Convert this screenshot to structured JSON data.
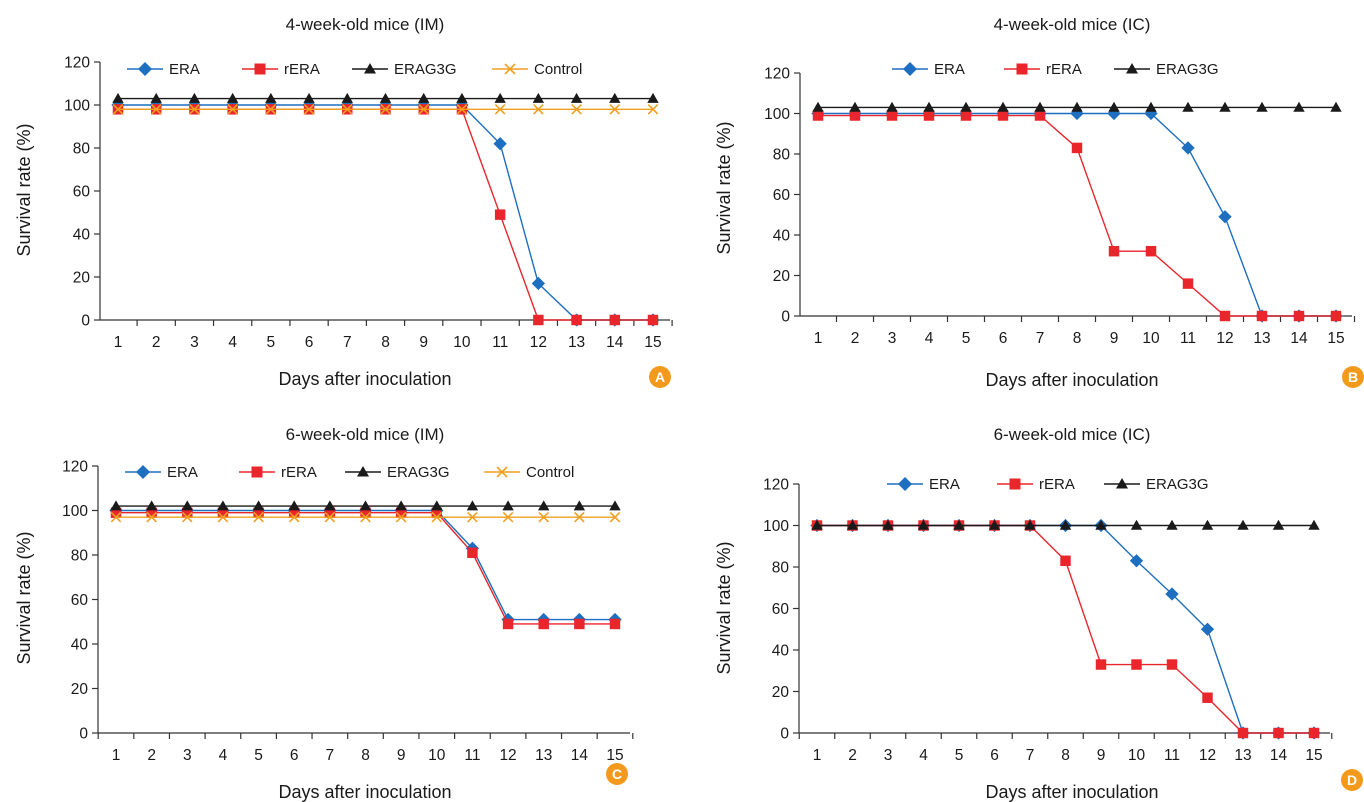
{
  "colors": {
    "ERA": "#1f6fc0",
    "rERA": "#e8262c",
    "ERAG3G": "#1a1a1a",
    "Control": "#f0a020",
    "badge": "#f39a1c",
    "axis": "#333333"
  },
  "chart_data": [
    {
      "panel": "A",
      "type": "line",
      "title": "4-week-old mice (IM)",
      "xlabel": "Days after inoculation",
      "ylabel": "Survival rate (%)",
      "x": [
        1,
        2,
        3,
        4,
        5,
        6,
        7,
        8,
        9,
        10,
        11,
        12,
        13,
        14,
        15
      ],
      "xlim": [
        1,
        15
      ],
      "ylim": [
        0,
        120
      ],
      "yticks": [
        0,
        20,
        40,
        60,
        80,
        100,
        120
      ],
      "legend_position": "top",
      "series": [
        {
          "name": "ERA",
          "marker": "diamond",
          "values": [
            100,
            100,
            100,
            100,
            100,
            100,
            100,
            100,
            100,
            100,
            82,
            17,
            0,
            0,
            0
          ]
        },
        {
          "name": "rERA",
          "marker": "square",
          "values": [
            98,
            98,
            98,
            98,
            98,
            98,
            98,
            98,
            98,
            98,
            49,
            0,
            0,
            0,
            0
          ]
        },
        {
          "name": "ERAG3G",
          "marker": "triangle",
          "values": [
            103,
            103,
            103,
            103,
            103,
            103,
            103,
            103,
            103,
            103,
            103,
            103,
            103,
            103,
            103
          ]
        },
        {
          "name": "Control",
          "marker": "x",
          "values": [
            98,
            98,
            98,
            98,
            98,
            98,
            98,
            98,
            98,
            98,
            98,
            98,
            98,
            98,
            98
          ]
        }
      ]
    },
    {
      "panel": "B",
      "type": "line",
      "title": "4-week-old mice (IC)",
      "xlabel": "Days after inoculation",
      "ylabel": "Survival rate (%)",
      "x": [
        1,
        2,
        3,
        4,
        5,
        6,
        7,
        8,
        9,
        10,
        11,
        12,
        13,
        14,
        15
      ],
      "xlim": [
        1,
        15
      ],
      "ylim": [
        0,
        120
      ],
      "yticks": [
        0,
        20,
        40,
        60,
        80,
        100,
        120
      ],
      "legend_position": "top",
      "series": [
        {
          "name": "ERA",
          "marker": "diamond",
          "values": [
            100,
            100,
            100,
            100,
            100,
            100,
            100,
            100,
            100,
            100,
            83,
            49,
            0,
            0,
            0
          ]
        },
        {
          "name": "rERA",
          "marker": "square",
          "values": [
            99,
            99,
            99,
            99,
            99,
            99,
            99,
            83,
            32,
            32,
            16,
            0,
            0,
            0,
            0
          ]
        },
        {
          "name": "ERAG3G",
          "marker": "triangle",
          "values": [
            103,
            103,
            103,
            103,
            103,
            103,
            103,
            103,
            103,
            103,
            103,
            103,
            103,
            103,
            103
          ]
        }
      ]
    },
    {
      "panel": "C",
      "type": "line",
      "title": "6-week-old mice (IM)",
      "xlabel": "Days after inoculation",
      "ylabel": "Survival rate (%)",
      "x": [
        1,
        2,
        3,
        4,
        5,
        6,
        7,
        8,
        9,
        10,
        11,
        12,
        13,
        14,
        15
      ],
      "xlim": [
        1,
        15
      ],
      "ylim": [
        0,
        120
      ],
      "yticks": [
        0,
        20,
        40,
        60,
        80,
        100,
        120
      ],
      "legend_position": "top",
      "series": [
        {
          "name": "ERA",
          "marker": "diamond",
          "values": [
            100,
            100,
            100,
            100,
            100,
            100,
            100,
            100,
            100,
            100,
            83,
            51,
            51,
            51,
            51
          ]
        },
        {
          "name": "rERA",
          "marker": "square",
          "values": [
            99,
            99,
            99,
            99,
            99,
            99,
            99,
            99,
            99,
            99,
            81,
            49,
            49,
            49,
            49
          ]
        },
        {
          "name": "ERAG3G",
          "marker": "triangle",
          "values": [
            102,
            102,
            102,
            102,
            102,
            102,
            102,
            102,
            102,
            102,
            102,
            102,
            102,
            102,
            102
          ]
        },
        {
          "name": "Control",
          "marker": "x",
          "values": [
            97,
            97,
            97,
            97,
            97,
            97,
            97,
            97,
            97,
            97,
            97,
            97,
            97,
            97,
            97
          ]
        }
      ]
    },
    {
      "panel": "D",
      "type": "line",
      "title": "6-week-old mice (IC)",
      "xlabel": "Days after inoculation",
      "ylabel": "Survival rate (%)",
      "x": [
        1,
        2,
        3,
        4,
        5,
        6,
        7,
        8,
        9,
        10,
        11,
        12,
        13,
        14,
        15
      ],
      "xlim": [
        1,
        15
      ],
      "ylim": [
        0,
        120
      ],
      "yticks": [
        0,
        20,
        40,
        60,
        80,
        100,
        120
      ],
      "legend_position": "top",
      "series": [
        {
          "name": "ERA",
          "marker": "diamond",
          "values": [
            100,
            100,
            100,
            100,
            100,
            100,
            100,
            100,
            100,
            83,
            67,
            50,
            0,
            0,
            0
          ]
        },
        {
          "name": "rERA",
          "marker": "square",
          "values": [
            100,
            100,
            100,
            100,
            100,
            100,
            100,
            83,
            33,
            33,
            33,
            17,
            0,
            0,
            0
          ]
        },
        {
          "name": "ERAG3G",
          "marker": "triangle",
          "values": [
            100,
            100,
            100,
            100,
            100,
            100,
            100,
            100,
            100,
            100,
            100,
            100,
            100,
            100,
            100
          ]
        }
      ]
    }
  ]
}
